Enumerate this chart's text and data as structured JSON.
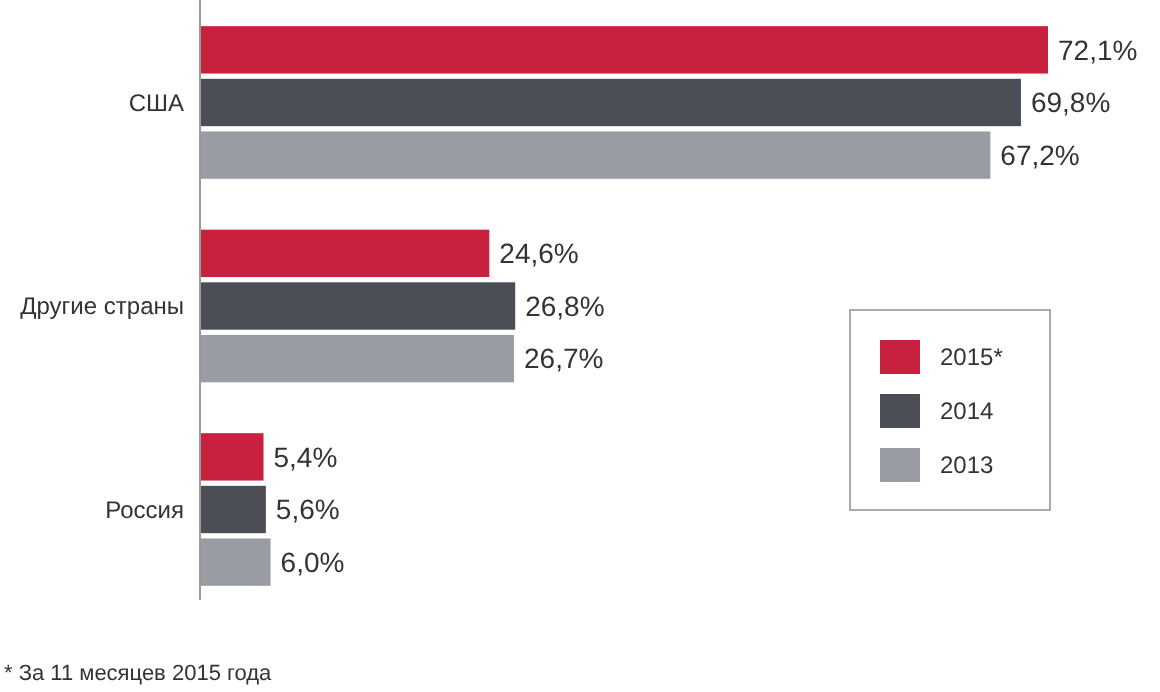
{
  "chart_data": {
    "type": "bar",
    "orientation": "horizontal",
    "categories": [
      "США",
      "Другие страны",
      "Россия"
    ],
    "series": [
      {
        "name": "2015*",
        "color": "#c8213f",
        "values": [
          72.1,
          24.6,
          5.4
        ],
        "value_labels": [
          "72,1%",
          "24,6%",
          "5,4%"
        ]
      },
      {
        "name": "2014",
        "color": "#4b4e55",
        "values": [
          69.8,
          26.8,
          5.6
        ],
        "value_labels": [
          "69,8%",
          "26,8%",
          "5,6%"
        ]
      },
      {
        "name": "2013",
        "color": "#9a9ca4",
        "values": [
          67.2,
          26.7,
          6.0
        ],
        "value_labels": [
          "67,2%",
          "26,7%",
          "6,0%"
        ]
      }
    ],
    "legend": "right",
    "annotations": [
      "* За 11 месяцев 2015 года"
    ]
  }
}
